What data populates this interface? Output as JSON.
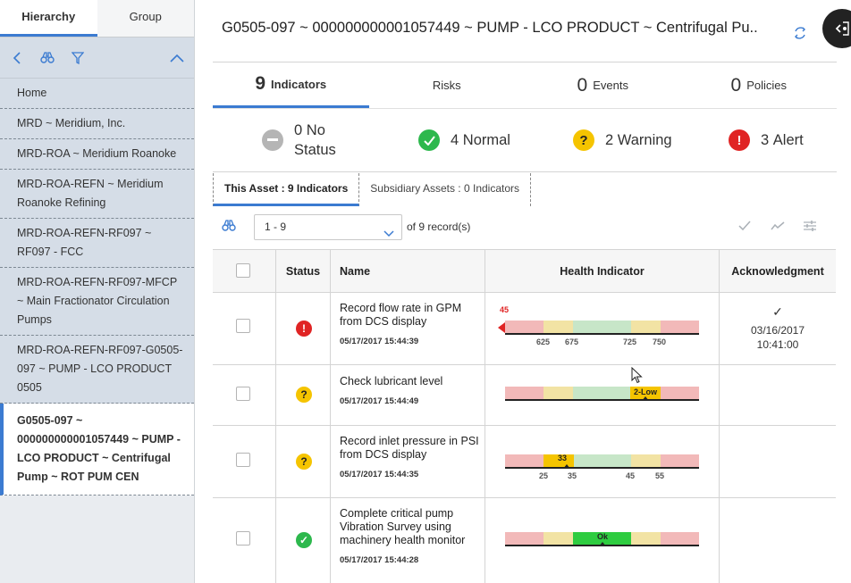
{
  "sidebar": {
    "tabs": [
      {
        "label": "Hierarchy"
      },
      {
        "label": "Group"
      }
    ],
    "items": [
      {
        "label": "Home"
      },
      {
        "label": "MRD ~ Meridium, Inc."
      },
      {
        "label": "MRD-ROA ~ Meridium Roanoke"
      },
      {
        "label": "MRD-ROA-REFN ~ Meridium Roanoke Refining"
      },
      {
        "label": "MRD-ROA-REFN-RF097 ~ RF097 - FCC"
      },
      {
        "label": "MRD-ROA-REFN-RF097-MFCP ~ Main Fractionator Circulation Pumps"
      },
      {
        "label": "MRD-ROA-REFN-RF097-G0505-097 ~ PUMP - LCO PRODUCT 0505"
      },
      {
        "label": "G0505-097 ~ 000000000001057449 ~ PUMP - LCO PRODUCT ~ Centrifugal Pump ~ ROT PUM CEN"
      }
    ]
  },
  "header": {
    "title": "G0505-097 ~ 000000000001057449 ~ PUMP - LCO PRODUCT ~ Centrifugal Pu..."
  },
  "tabs": [
    {
      "count": "9",
      "label": "Indicators"
    },
    {
      "label": "Risks"
    },
    {
      "count": "0",
      "label": "Events"
    },
    {
      "count": "0",
      "label": "Policies"
    }
  ],
  "status_counts": {
    "no_status": {
      "count": "0",
      "label": "No Status"
    },
    "normal": {
      "count": "4",
      "label": "Normal"
    },
    "warning": {
      "count": "2",
      "label": "Warning"
    },
    "alert": {
      "count": "3",
      "label": "Alert"
    }
  },
  "subtabs": [
    {
      "label": "This Asset : 9 Indicators"
    },
    {
      "label": "Subsidiary Assets : 0 Indicators"
    }
  ],
  "pager": {
    "value": "1 - 9",
    "of_text": "of 9  record(s)"
  },
  "table": {
    "headers": {
      "status": "Status",
      "name": "Name",
      "health": "Health Indicator",
      "ack": "Acknowledgment"
    },
    "rows": [
      {
        "status": "alert",
        "name": "Record flow rate in GPM from DCS display",
        "timestamp": "05/17/2017 15:44:39",
        "value": "45",
        "ticks": [
          "625",
          "675",
          "725",
          "750"
        ],
        "ack_date": "03/16/2017",
        "ack_time": "10:41:00"
      },
      {
        "status": "warning",
        "name": "Check lubricant level",
        "timestamp": "05/17/2017 15:44:49",
        "value": "2-Low",
        "ticks": []
      },
      {
        "status": "warning",
        "name": "Record inlet pressure in PSI from DCS display",
        "timestamp": "05/17/2017 15:44:35",
        "value": "33",
        "ticks": [
          "25",
          "35",
          "45",
          "55"
        ]
      },
      {
        "status": "normal",
        "name": "Complete critical pump Vibration Survey using machinery health monitor",
        "timestamp": "05/17/2017 15:44:28",
        "value": "Ok",
        "ticks": []
      }
    ]
  },
  "colors": {
    "accent": "#3b7bd1",
    "alert": "#e02424",
    "warning": "#f5c400",
    "normal": "#2db84d",
    "no_status": "#b5b5b5"
  }
}
